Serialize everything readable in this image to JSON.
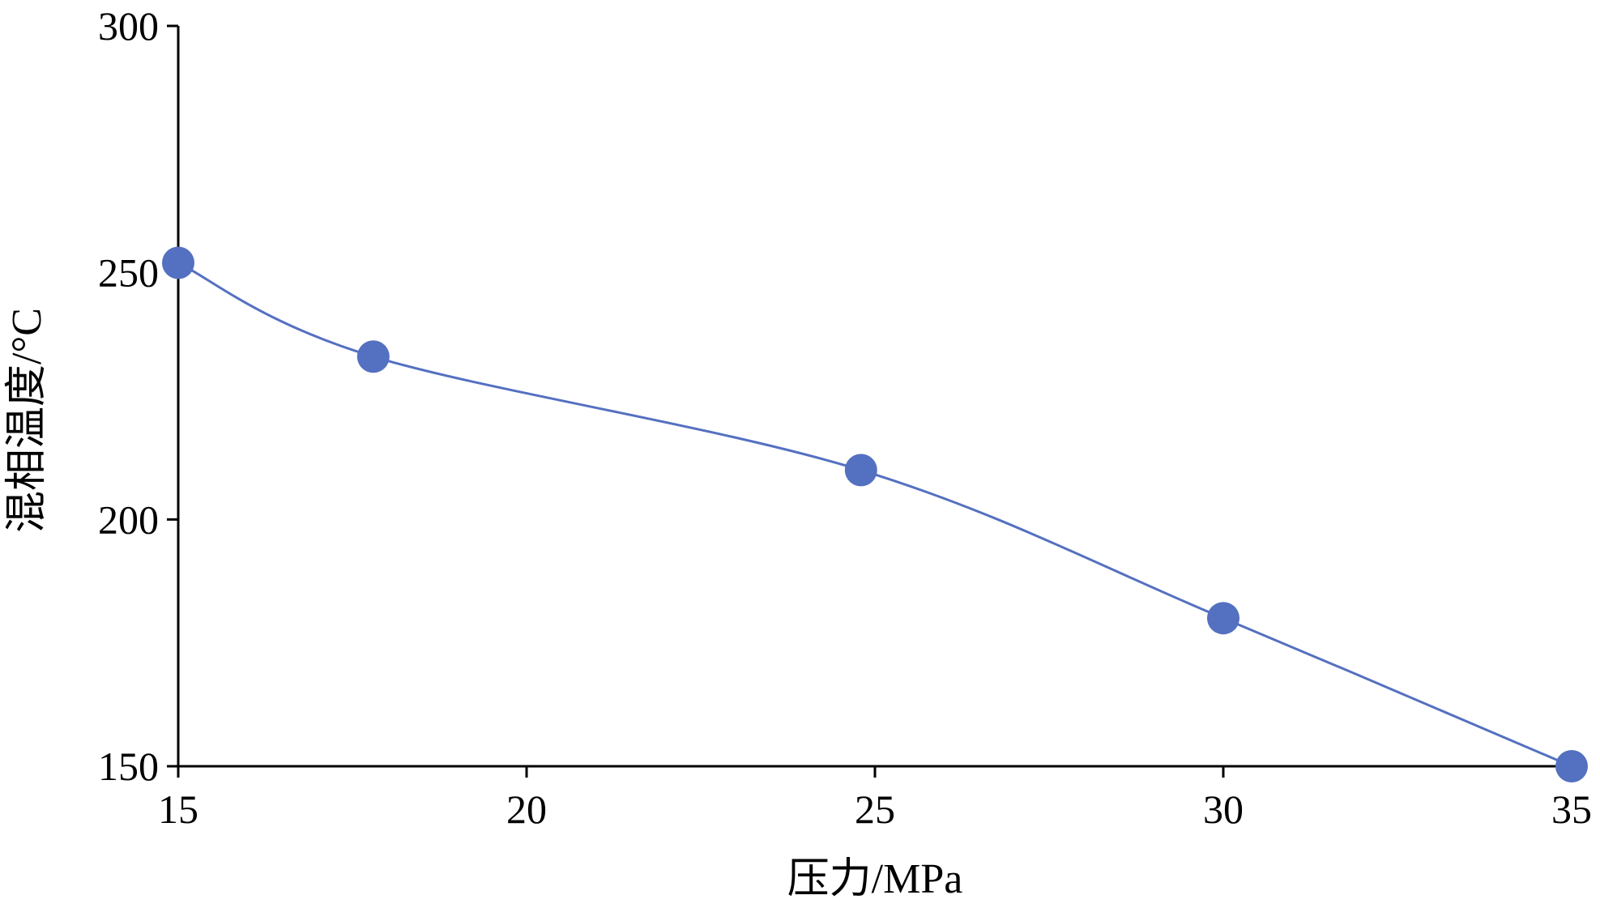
{
  "chart_data": {
    "type": "line",
    "smooth": true,
    "markers": true,
    "title": "",
    "xlabel": "压力/MPa",
    "ylabel": "混相温度/°C",
    "xlim": [
      15,
      35
    ],
    "ylim": [
      150,
      300
    ],
    "xticks": [
      15,
      20,
      25,
      30,
      35
    ],
    "yticks": [
      150,
      200,
      250,
      300
    ],
    "grid": false,
    "legend": "none",
    "series": [
      {
        "color": "#5470c0",
        "x": [
          15,
          17.8,
          24.8,
          30,
          35
        ],
        "y": [
          252,
          233,
          210,
          180,
          150
        ]
      }
    ]
  }
}
